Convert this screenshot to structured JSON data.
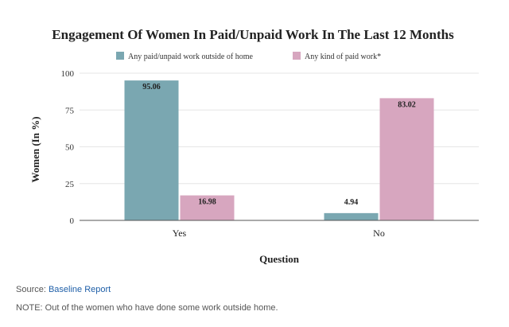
{
  "chart_data": {
    "type": "bar",
    "title": "Engagement Of Women In Paid/Unpaid Work In The Last 12 Months",
    "xlabel": "Question",
    "ylabel": "Women (In %)",
    "categories": [
      "Yes",
      "No"
    ],
    "ylim": [
      0,
      100
    ],
    "yticks": [
      "100",
      "75",
      "50",
      "25",
      "0"
    ],
    "legend_position": "top-center",
    "series": [
      {
        "name": "Any paid/unpaid work outside of home",
        "values": [
          95.06,
          4.94
        ],
        "labels": [
          "95.06",
          "4.94"
        ],
        "color": "#7aa7b1"
      },
      {
        "name": "Any kind of paid work*",
        "values": [
          16.98,
          83.02
        ],
        "labels": [
          "16.98",
          "83.02"
        ],
        "color": "#d7a6bf"
      }
    ]
  },
  "footer": {
    "source_prefix": "Source: ",
    "source_link": "Baseline Report",
    "note": "NOTE: Out of the women who have done some work outside home."
  }
}
